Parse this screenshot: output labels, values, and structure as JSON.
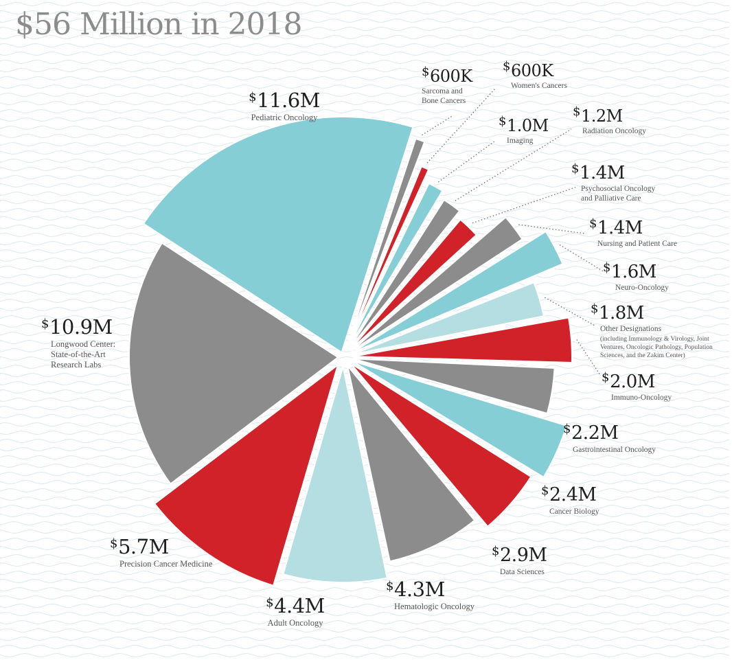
{
  "title": "$56 Million in 2018",
  "colors": {
    "teal": "#85ced6",
    "gray": "#8c8c8c",
    "red": "#d1222a",
    "light_teal": "#b5dee3",
    "title_gray": "#8c8c8c",
    "wave": "#dbe9ee"
  },
  "chart_data": {
    "type": "pie",
    "unit": "USD millions",
    "total_label": "$56 Million in 2018",
    "slices": [
      {
        "name": "Pediatric Oncology",
        "value": 11.6,
        "amount": "11.6M",
        "color": "teal"
      },
      {
        "name": "Sarcoma and Bone Cancers",
        "value": 0.6,
        "amount": "600K",
        "color": "gray"
      },
      {
        "name": "Women's Cancers",
        "value": 0.6,
        "amount": "600K",
        "color": "red"
      },
      {
        "name": "Imaging",
        "value": 1.0,
        "amount": "1.0M",
        "color": "teal"
      },
      {
        "name": "Radiation Oncology",
        "value": 1.2,
        "amount": "1.2M",
        "color": "gray"
      },
      {
        "name": "Psychosocial Oncology and Palliative Care",
        "value": 1.4,
        "amount": "1.4M",
        "color": "red"
      },
      {
        "name": "Nursing and Patient Care",
        "value": 1.4,
        "amount": "1.4M",
        "color": "gray"
      },
      {
        "name": "Neuro-Oncology",
        "value": 1.6,
        "amount": "1.6M",
        "color": "teal"
      },
      {
        "name": "Other Designations",
        "value": 1.8,
        "amount": "1.8M",
        "color": "light_teal",
        "note": "(including Immunology & Virology, Joint Ventures, Oncologic Pathology, Population Sciences, and the Zakim Center)"
      },
      {
        "name": "Immuno-Oncology",
        "value": 2.0,
        "amount": "2.0M",
        "color": "red"
      },
      {
        "name": "Gastrointestinal Oncology",
        "value": 2.2,
        "amount": "2.2M",
        "color": "gray"
      },
      {
        "name": "Cancer Biology",
        "value": 2.4,
        "amount": "2.4M",
        "color": "teal"
      },
      {
        "name": "Data Sciences",
        "value": 2.9,
        "amount": "2.9M",
        "color": "red"
      },
      {
        "name": "Hematologic Oncology",
        "value": 4.3,
        "amount": "4.3M",
        "color": "gray"
      },
      {
        "name": "Adult Oncology",
        "value": 4.4,
        "amount": "4.4M",
        "color": "light_teal"
      },
      {
        "name": "Precision Cancer Medicine",
        "value": 5.7,
        "amount": "5.7M",
        "color": "red"
      },
      {
        "name": "Longwood Center: State-of-the-Art Research Labs",
        "value": 10.9,
        "amount": "10.9M",
        "color": "gray"
      }
    ]
  },
  "labels": [
    {
      "currency": "$",
      "amount": "11.6M",
      "lines": [
        "Pediatric Oncology"
      ]
    },
    {
      "currency": "$",
      "amount": "600K",
      "lines": [
        "Sarcoma and",
        "Bone Cancers"
      ]
    },
    {
      "currency": "$",
      "amount": "600K",
      "lines": [
        "Women's Cancers"
      ]
    },
    {
      "currency": "$",
      "amount": "1.0M",
      "lines": [
        "Imaging"
      ]
    },
    {
      "currency": "$",
      "amount": "1.2M",
      "lines": [
        "Radiation Oncology"
      ]
    },
    {
      "currency": "$",
      "amount": "1.4M",
      "lines": [
        "Psychosocial Oncology",
        "and Palliative Care"
      ]
    },
    {
      "currency": "$",
      "amount": "1.4M",
      "lines": [
        "Nursing and Patient Care"
      ]
    },
    {
      "currency": "$",
      "amount": "1.6M",
      "lines": [
        "Neuro-Oncology"
      ]
    },
    {
      "currency": "$",
      "amount": "1.8M",
      "lines": [
        "Other Designations"
      ],
      "note_lines": [
        "(including Immunology & Virology, Joint",
        "Ventures, Oncologic Pathology, Population",
        "Sciences, and the Zakim Center)"
      ]
    },
    {
      "currency": "$",
      "amount": "2.0M",
      "lines": [
        "Immuno-Oncology"
      ]
    },
    {
      "currency": "$",
      "amount": "2.2M",
      "lines": [
        "Gastrointestinal Oncology"
      ]
    },
    {
      "currency": "$",
      "amount": "2.4M",
      "lines": [
        "Cancer Biology"
      ]
    },
    {
      "currency": "$",
      "amount": "2.9M",
      "lines": [
        "Data Sciences"
      ]
    },
    {
      "currency": "$",
      "amount": "4.3M",
      "lines": [
        "Hematologic Oncology"
      ]
    },
    {
      "currency": "$",
      "amount": "4.4M",
      "lines": [
        "Adult Oncology"
      ]
    },
    {
      "currency": "$",
      "amount": "5.7M",
      "lines": [
        "Precision Cancer Medicine"
      ]
    },
    {
      "currency": "$",
      "amount": "10.9M",
      "lines": [
        "Longwood Center:",
        "State-of-the-Art",
        "Research Labs"
      ]
    }
  ]
}
